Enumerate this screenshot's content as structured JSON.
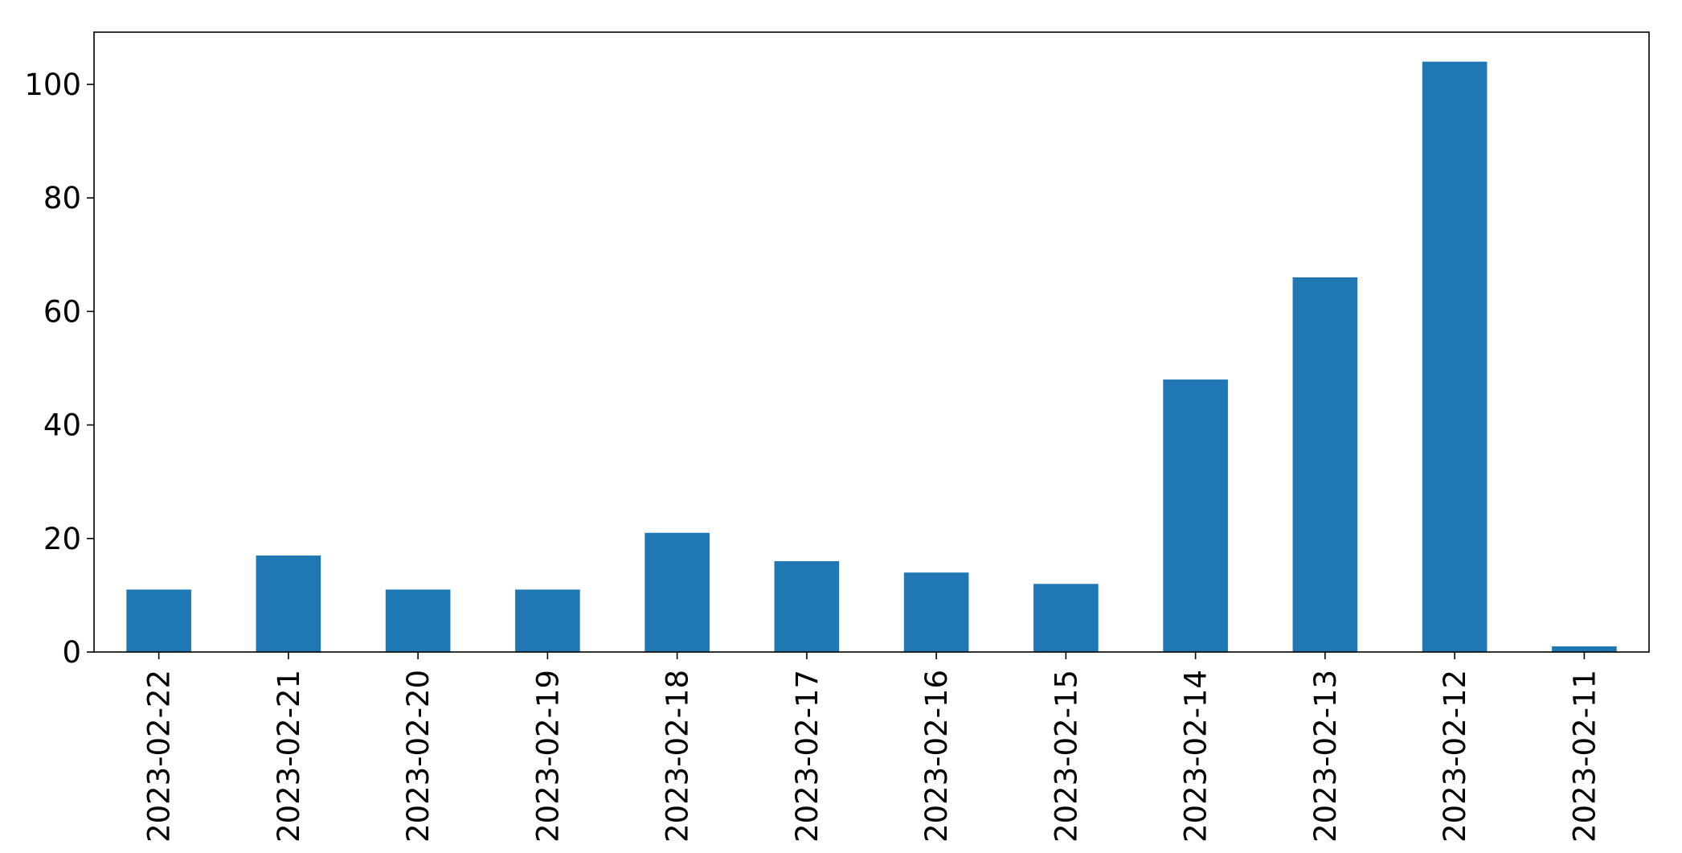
{
  "chart_data": {
    "type": "bar",
    "title": "",
    "xlabel": "",
    "ylabel": "",
    "categories": [
      "2023-02-22",
      "2023-02-21",
      "2023-02-20",
      "2023-02-19",
      "2023-02-18",
      "2023-02-17",
      "2023-02-16",
      "2023-02-15",
      "2023-02-14",
      "2023-02-13",
      "2023-02-12",
      "2023-02-11"
    ],
    "values": [
      11,
      17,
      11,
      11,
      21,
      16,
      14,
      12,
      48,
      66,
      104,
      1
    ],
    "ylim": [
      0,
      109.2
    ],
    "yticks": [
      0,
      20,
      40,
      60,
      80,
      100
    ],
    "ytick_labels": [
      "0",
      "20",
      "40",
      "60",
      "80",
      "100"
    ],
    "grid": false,
    "legend": "none",
    "bar_color": "#1f77b4"
  }
}
